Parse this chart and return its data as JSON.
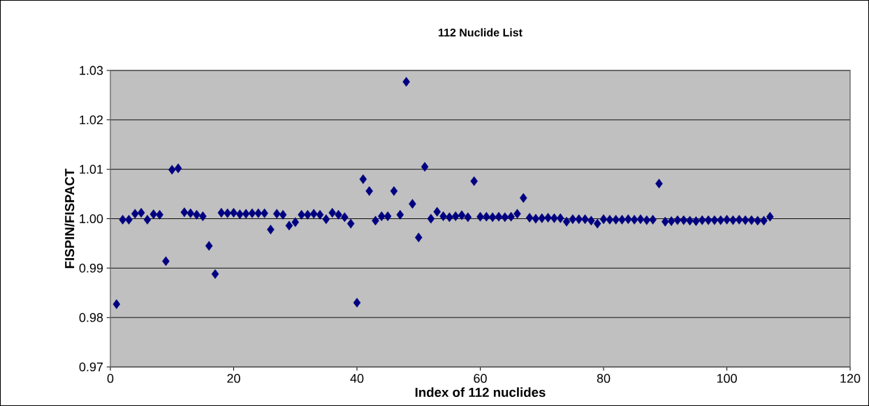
{
  "chart_data": {
    "type": "scatter",
    "title": "112 Nuclide List",
    "xlabel": "Index of 112 nuclides",
    "ylabel": "FISPIN/FISPACT",
    "x": [
      1,
      2,
      3,
      4,
      5,
      6,
      7,
      8,
      9,
      10,
      11,
      12,
      13,
      14,
      15,
      16,
      17,
      18,
      19,
      20,
      21,
      22,
      23,
      24,
      25,
      26,
      27,
      28,
      29,
      30,
      31,
      32,
      33,
      34,
      35,
      36,
      37,
      38,
      39,
      40,
      41,
      42,
      43,
      44,
      45,
      46,
      47,
      48,
      49,
      50,
      51,
      52,
      53,
      54,
      55,
      56,
      57,
      58,
      59,
      60,
      61,
      62,
      63,
      64,
      65,
      66,
      67,
      68,
      69,
      70,
      71,
      72,
      73,
      74,
      75,
      76,
      77,
      78,
      79,
      80,
      81,
      82,
      83,
      84,
      85,
      86,
      87,
      88,
      89,
      90,
      91,
      92,
      93,
      94,
      95,
      96,
      97,
      98,
      99,
      100,
      101,
      102,
      103,
      104,
      105,
      106,
      107
    ],
    "series": [
      {
        "color": "#000080",
        "values": [
          0.9827,
          0.9998,
          0.9998,
          1.001,
          1.0012,
          0.9998,
          1.0009,
          1.0008,
          0.9914,
          1.0099,
          1.0102,
          1.0013,
          1.0011,
          1.0008,
          1.0005,
          0.9945,
          0.9888,
          1.0012,
          1.0011,
          1.0012,
          1.0009,
          1.001,
          1.0011,
          1.0011,
          1.0011,
          0.9978,
          1.001,
          1.0008,
          0.9986,
          0.9993,
          1.0008,
          1.0008,
          1.001,
          1.0008,
          0.9999,
          1.0012,
          1.0008,
          1.0003,
          0.999,
          0.983,
          1.008,
          1.0056,
          0.9996,
          1.0005,
          1.0005,
          1.0056,
          1.0008,
          1.0277,
          1.003,
          0.9962,
          1.0105,
          1.0,
          1.0014,
          1.0005,
          1.0003,
          1.0005,
          1.0007,
          1.0003,
          1.0076,
          1.0004,
          1.0004,
          1.0003,
          1.0004,
          1.0003,
          1.0004,
          1.001,
          1.0042,
          1.0002,
          1.0,
          1.0001,
          1.0002,
          1.0001,
          1.0001,
          0.9994,
          0.9999,
          0.9999,
          0.9999,
          0.9996,
          0.999,
          0.9999,
          0.9998,
          0.9998,
          0.9998,
          0.9999,
          0.9998,
          0.9999,
          0.9997,
          0.9998,
          1.0071,
          0.9994,
          0.9995,
          0.9997,
          0.9997,
          0.9996,
          0.9995,
          0.9997,
          0.9997,
          0.9997,
          0.9997,
          0.9998,
          0.9997,
          0.9998,
          0.9997,
          0.9997,
          0.9996,
          0.9996,
          1.0004
        ]
      }
    ],
    "marker": "diamond",
    "grid": "y",
    "xlim": [
      0,
      120
    ],
    "xticks": [
      0,
      20,
      40,
      60,
      80,
      100,
      120
    ],
    "ylim": [
      0.97,
      1.03
    ],
    "yticks": [
      {
        "value": 0.97,
        "label": "0.97"
      },
      {
        "value": 0.98,
        "label": "0.98"
      },
      {
        "value": 0.99,
        "label": "0.99"
      },
      {
        "value": 1.0,
        "label": "1.00"
      },
      {
        "value": 1.01,
        "label": "1.01"
      },
      {
        "value": 1.02,
        "label": "1.02"
      },
      {
        "value": 1.03,
        "label": "1.03"
      }
    ]
  }
}
